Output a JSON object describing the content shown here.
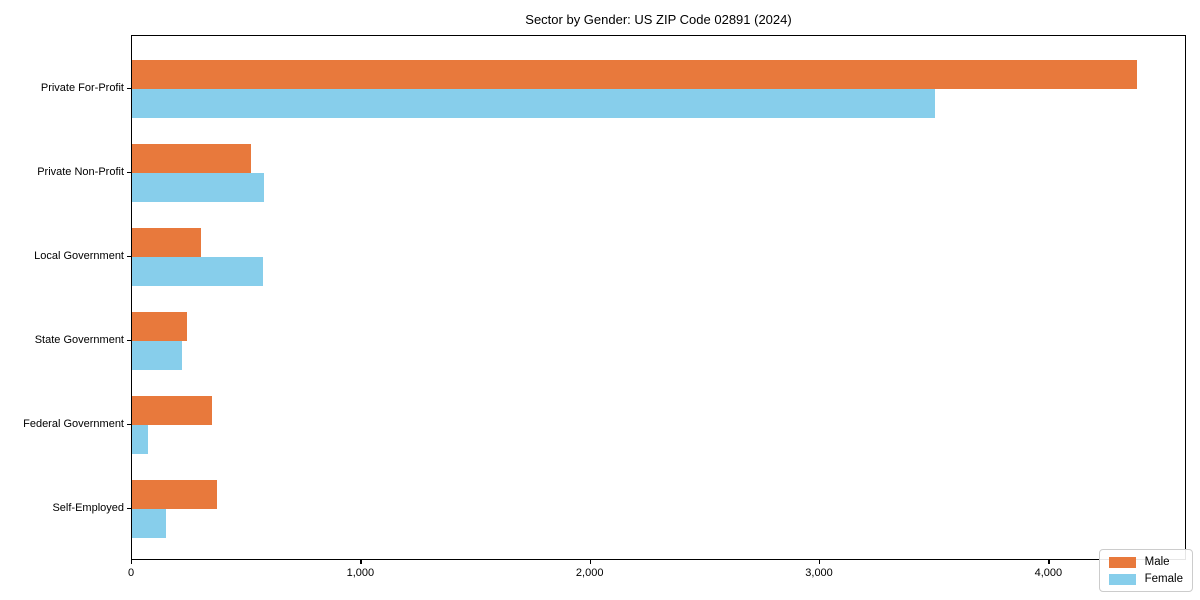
{
  "title": "Sector by Gender: US ZIP Code 02891 (2024)",
  "chart_data": {
    "type": "bar",
    "orientation": "horizontal",
    "title": "Sector by Gender: US ZIP Code 02891 (2024)",
    "categories": [
      "Private For-Profit",
      "Private Non-Profit",
      "Local Government",
      "State Government",
      "Federal Government",
      "Self-Employed"
    ],
    "series": [
      {
        "name": "Male",
        "color": "#E8793C",
        "values": [
          4380,
          520,
          300,
          240,
          350,
          370
        ]
      },
      {
        "name": "Female",
        "color": "#87CEEB",
        "values": [
          3500,
          575,
          570,
          220,
          70,
          150
        ]
      }
    ],
    "xlabel": "",
    "ylabel": "",
    "xlim": [
      0,
      4600
    ],
    "xticks": [
      0,
      1000,
      2000,
      3000,
      4000
    ],
    "xtick_labels": [
      "0",
      "1,000",
      "2,000",
      "3,000",
      "4,000"
    ],
    "grid": false,
    "legend_position": "lower right",
    "background_color": "#ffffff",
    "spine_color": "#000000"
  },
  "legend": {
    "items": [
      {
        "label": "Male",
        "color": "#E8793C"
      },
      {
        "label": "Female",
        "color": "#87CEEB"
      }
    ]
  }
}
